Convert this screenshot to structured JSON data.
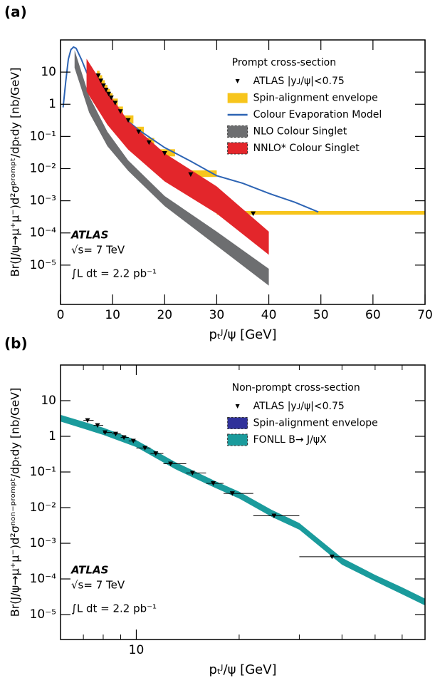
{
  "chart_data": [
    {
      "type": "combo",
      "panel": "(a)",
      "xlabel": "pₜᴶ/ψ [GeV]",
      "ylabel": "Br(J/ψ→μ⁺μ⁻)d²σᵖʳᵒᵐᵖᵗ/dpₜdy [nb/GeV]",
      "xlim": [
        0,
        70
      ],
      "xticks": [
        0,
        10,
        20,
        30,
        40,
        50,
        60,
        70
      ],
      "xlog": false,
      "ylim": [
        6e-07,
        100
      ],
      "ylog": true,
      "yticks": [
        {
          "value": 1e-05,
          "label": "10⁻⁵"
        },
        {
          "value": 0.0001,
          "label": "10⁻⁴"
        },
        {
          "value": 0.001,
          "label": "10⁻³"
        },
        {
          "value": 0.01,
          "label": "10⁻²"
        },
        {
          "value": 0.1,
          "label": "10⁻¹"
        },
        1,
        10
      ],
      "legend": {
        "title": "Prompt cross-section",
        "position": "upper right"
      },
      "annotations": [
        "ATLAS",
        "√s= 7 TeV",
        "∫L dt = 2.2 pb⁻¹"
      ],
      "series": [
        {
          "name": "ATLAS  |yᴊ/ψ|<0.75",
          "type": "points",
          "color": "#000000",
          "x": [
            7.25,
            7.75,
            8.25,
            8.75,
            9.25,
            9.75,
            10.5,
            11.5,
            13,
            15,
            17,
            20,
            25,
            37
          ],
          "values": [
            7.8,
            5.4,
            3.8,
            2.8,
            2.1,
            1.6,
            1.1,
            0.6,
            0.32,
            0.14,
            0.065,
            0.03,
            0.0066,
            0.0004
          ]
        },
        {
          "name": "Spin-alignment envelope",
          "type": "boxes",
          "color": "#f7c51c",
          "bins": [
            7,
            7.5,
            8,
            8.5,
            9,
            9.5,
            10,
            11,
            12,
            14,
            16,
            18,
            22,
            30,
            70
          ],
          "low": [
            5.5,
            4,
            2.8,
            2,
            1.5,
            1.1,
            0.8,
            0.45,
            0.25,
            0.11,
            0.05,
            0.024,
            0.0055,
            0.00037
          ],
          "high": [
            11,
            8,
            5.6,
            4,
            3,
            2.2,
            1.5,
            0.85,
            0.45,
            0.2,
            0.09,
            0.04,
            0.0088,
            0.00048
          ]
        },
        {
          "name": "Colour Evaporation Model",
          "type": "line",
          "color": "#2d64b4",
          "x": [
            0.5,
            1,
            1.5,
            2,
            2.5,
            3,
            4,
            5,
            6,
            8,
            10,
            12,
            15,
            20,
            25,
            30,
            35,
            40,
            45,
            49.5
          ],
          "values": [
            0.8,
            5,
            25,
            50,
            60,
            55,
            25,
            10,
            4.5,
            1.6,
            0.8,
            0.4,
            0.16,
            0.045,
            0.017,
            0.006,
            0.0035,
            0.0017,
            0.0009,
            0.00045
          ]
        },
        {
          "name": "NLO Colour Singlet",
          "type": "band",
          "color": "#6d6e70",
          "x": [
            2.7,
            5.5,
            9,
            13,
            20,
            30,
            40
          ],
          "low": [
            13.6,
            0.55,
            0.05,
            0.0085,
            0.00068,
            4e-05,
            2.3e-06
          ],
          "high": [
            48,
            1.8,
            0.14,
            0.018,
            0.0014,
            0.00011,
            7.7e-06
          ]
        },
        {
          "name": "NNLO* Colour Singlet",
          "type": "band",
          "color": "#e3262b",
          "x": [
            5,
            9,
            13,
            20,
            30,
            40
          ],
          "low": [
            2.5,
            0.23,
            0.039,
            0.004,
            0.0004,
            2.1e-05
          ],
          "high": [
            26,
            2.5,
            0.3,
            0.03,
            0.0028,
            0.00011
          ]
        }
      ]
    },
    {
      "type": "combo",
      "panel": "(b)",
      "xlabel": "pₜᴶ/ψ [GeV]",
      "ylabel": "Br(J/ψ→μ⁺μ⁻)d²σⁿᵒⁿ⁻ᵖʳᵒᵐᵖᵗ/dpₜdy [nb/GeV]",
      "xlim": [
        6,
        70
      ],
      "xticks": [
        10
      ],
      "xminorticks": [
        7,
        8,
        9,
        20,
        30,
        40,
        50,
        60
      ],
      "xlog": true,
      "ylim": [
        2e-06,
        100
      ],
      "ylog": true,
      "yticks": [
        {
          "value": 1e-05,
          "label": "10⁻⁵"
        },
        {
          "value": 0.0001,
          "label": "10⁻⁴"
        },
        {
          "value": 0.001,
          "label": "10⁻³"
        },
        {
          "value": 0.01,
          "label": "10⁻²"
        },
        {
          "value": 0.1,
          "label": "10⁻¹"
        },
        1,
        10
      ],
      "legend": {
        "title": "Non-prompt cross-section",
        "position": "upper right"
      },
      "annotations": [
        "ATLAS",
        "√s= 7 TeV",
        "∫L dt = 2.2 pb⁻¹"
      ],
      "series": [
        {
          "name": "ATLAS  |yᴊ/ψ|<0.75",
          "type": "points",
          "color": "#000000",
          "x": [
            7.2,
            7.7,
            8.1,
            8.7,
            9.2,
            9.8,
            10.6,
            11.4,
            12.6,
            14.6,
            16.8,
            19.1,
            25.3,
            37.4
          ],
          "bins": [
            7,
            7.5,
            8,
            8.5,
            9,
            9.5,
            10,
            11,
            12,
            14,
            16,
            18,
            22,
            30,
            70
          ],
          "values": [
            2.8,
            2.03,
            1.28,
            1.17,
            0.93,
            0.74,
            0.47,
            0.33,
            0.17,
            0.094,
            0.048,
            0.025,
            0.0059,
            0.00042
          ]
        },
        {
          "name": "Spin-alignment envelope",
          "type": "legend-only",
          "color": "#30319a"
        },
        {
          "name": "FONLL B→ J/ψX",
          "type": "band",
          "color": "#1a9b9c",
          "x": [
            6,
            8,
            10,
            13,
            17,
            20,
            25,
            30,
            40,
            50,
            60,
            70
          ],
          "low": [
            2.6,
            1.1,
            0.5,
            0.12,
            0.036,
            0.018,
            0.0054,
            0.0024,
            0.00025,
            8.6e-05,
            3.7e-05,
            1.8e-05
          ],
          "high": [
            4,
            1.75,
            0.78,
            0.19,
            0.056,
            0.028,
            0.0085,
            0.0037,
            0.00039,
            0.00013,
            5.8e-05,
            2.8e-05
          ]
        }
      ]
    }
  ]
}
